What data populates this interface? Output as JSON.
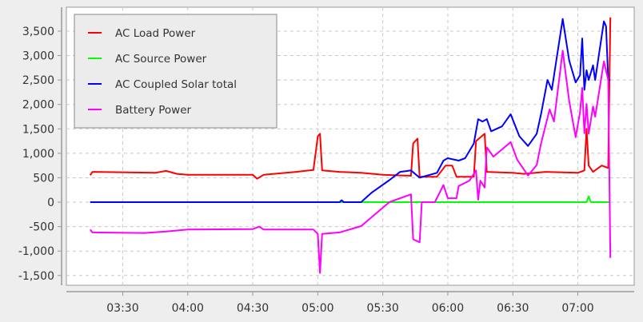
{
  "chart_data": {
    "type": "line",
    "title": "",
    "xlabel": "",
    "ylabel": "",
    "xlim": [
      "03:04",
      "07:26"
    ],
    "ylim": [
      -1700,
      3990
    ],
    "grid": true,
    "legend_placement": "top-left",
    "x_ticks": [
      "03:30",
      "04:00",
      "04:30",
      "05:00",
      "05:30",
      "06:00",
      "06:30",
      "07:00"
    ],
    "y_ticks": [
      {
        "value": 3500,
        "label": "3,500"
      },
      {
        "value": 3000,
        "label": "3,000"
      },
      {
        "value": 2500,
        "label": "2,500"
      },
      {
        "value": 2000,
        "label": "2,000"
      },
      {
        "value": 1500,
        "label": "1,500"
      },
      {
        "value": 1000,
        "label": "1,000"
      },
      {
        "value": 500,
        "label": "500"
      },
      {
        "value": 0,
        "label": "0"
      },
      {
        "value": -500,
        "label": "-500"
      },
      {
        "value": -1000,
        "label": "-1,000"
      },
      {
        "value": -1500,
        "label": "-1,500"
      }
    ],
    "series": [
      {
        "name": "AC Load Power",
        "color": "#ff0000",
        "points": [
          [
            "03:15",
            550
          ],
          [
            "03:16",
            620
          ],
          [
            "03:45",
            600
          ],
          [
            "03:50",
            640
          ],
          [
            "03:55",
            580
          ],
          [
            "04:00",
            560
          ],
          [
            "04:30",
            560
          ],
          [
            "04:32",
            480
          ],
          [
            "04:35",
            560
          ],
          [
            "04:50",
            620
          ],
          [
            "04:58",
            660
          ],
          [
            "05:00",
            1350
          ],
          [
            "05:01",
            1400
          ],
          [
            "05:02",
            650
          ],
          [
            "05:10",
            620
          ],
          [
            "05:20",
            600
          ],
          [
            "05:30",
            560
          ],
          [
            "05:43",
            540
          ],
          [
            "05:44",
            1200
          ],
          [
            "05:46",
            1300
          ],
          [
            "05:47",
            520
          ],
          [
            "05:55",
            520
          ],
          [
            "05:59",
            750
          ],
          [
            "06:02",
            750
          ],
          [
            "06:04",
            520
          ],
          [
            "06:12",
            520
          ],
          [
            "06:13",
            1250
          ],
          [
            "06:17",
            1400
          ],
          [
            "06:18",
            620
          ],
          [
            "06:30",
            600
          ],
          [
            "06:35",
            580
          ],
          [
            "06:45",
            620
          ],
          [
            "07:00",
            600
          ],
          [
            "07:03",
            650
          ],
          [
            "07:04",
            1500
          ],
          [
            "07:05",
            750
          ],
          [
            "07:07",
            620
          ],
          [
            "07:11",
            750
          ],
          [
            "07:14",
            700
          ],
          [
            "07:15",
            3780
          ]
        ]
      },
      {
        "name": "AC Source Power",
        "color": "#00ff00",
        "points": [
          [
            "03:15",
            0
          ],
          [
            "07:04",
            0
          ],
          [
            "07:05",
            120
          ],
          [
            "07:06",
            0
          ],
          [
            "07:15",
            0
          ]
        ]
      },
      {
        "name": "AC Coupled Solar total",
        "color": "#0000ff",
        "points": [
          [
            "03:15",
            0
          ],
          [
            "05:10",
            0
          ],
          [
            "05:11",
            40
          ],
          [
            "05:12",
            0
          ],
          [
            "05:20",
            0
          ],
          [
            "05:25",
            200
          ],
          [
            "05:33",
            450
          ],
          [
            "05:38",
            620
          ],
          [
            "05:43",
            650
          ],
          [
            "05:47",
            500
          ],
          [
            "05:55",
            600
          ],
          [
            "05:58",
            850
          ],
          [
            "06:00",
            900
          ],
          [
            "06:05",
            850
          ],
          [
            "06:08",
            900
          ],
          [
            "06:12",
            1200
          ],
          [
            "06:14",
            1700
          ],
          [
            "06:16",
            1650
          ],
          [
            "06:18",
            1700
          ],
          [
            "06:20",
            1450
          ],
          [
            "06:25",
            1550
          ],
          [
            "06:29",
            1800
          ],
          [
            "06:33",
            1350
          ],
          [
            "06:37",
            1150
          ],
          [
            "06:41",
            1400
          ],
          [
            "06:43",
            1800
          ],
          [
            "06:46",
            2500
          ],
          [
            "06:48",
            2300
          ],
          [
            "06:53",
            3750
          ],
          [
            "06:56",
            2900
          ],
          [
            "06:59",
            2450
          ],
          [
            "07:01",
            2600
          ],
          [
            "07:02",
            3350
          ],
          [
            "07:03",
            2300
          ],
          [
            "07:04",
            2700
          ],
          [
            "07:05",
            2500
          ],
          [
            "07:07",
            2800
          ],
          [
            "07:08",
            2500
          ],
          [
            "07:12",
            3700
          ],
          [
            "07:13",
            3600
          ],
          [
            "07:14",
            2500
          ],
          [
            "07:15",
            2500
          ]
        ]
      },
      {
        "name": "Battery Power",
        "color": "#ff00ff",
        "points": [
          [
            "03:15",
            -560
          ],
          [
            "03:16",
            -620
          ],
          [
            "03:40",
            -630
          ],
          [
            "03:50",
            -600
          ],
          [
            "04:00",
            -560
          ],
          [
            "04:30",
            -550
          ],
          [
            "04:33",
            -500
          ],
          [
            "04:35",
            -560
          ],
          [
            "04:58",
            -560
          ],
          [
            "05:00",
            -650
          ],
          [
            "05:01",
            -1450
          ],
          [
            "05:02",
            -650
          ],
          [
            "05:10",
            -620
          ],
          [
            "05:20",
            -490
          ],
          [
            "05:33",
            0
          ],
          [
            "05:43",
            160
          ],
          [
            "05:44",
            -760
          ],
          [
            "05:47",
            -820
          ],
          [
            "05:48",
            0
          ],
          [
            "05:54",
            0
          ],
          [
            "05:58",
            350
          ],
          [
            "06:00",
            80
          ],
          [
            "06:04",
            80
          ],
          [
            "06:05",
            330
          ],
          [
            "06:10",
            440
          ],
          [
            "06:13",
            650
          ],
          [
            "06:14",
            50
          ],
          [
            "06:15",
            440
          ],
          [
            "06:17",
            300
          ],
          [
            "06:18",
            1120
          ],
          [
            "06:21",
            930
          ],
          [
            "06:29",
            1230
          ],
          [
            "06:32",
            870
          ],
          [
            "06:37",
            545
          ],
          [
            "06:41",
            760
          ],
          [
            "06:43",
            1200
          ],
          [
            "06:47",
            1900
          ],
          [
            "06:49",
            1650
          ],
          [
            "06:53",
            3100
          ],
          [
            "06:56",
            2070
          ],
          [
            "06:59",
            1330
          ],
          [
            "07:01",
            1850
          ],
          [
            "07:02",
            2340
          ],
          [
            "07:03",
            1410
          ],
          [
            "07:04",
            2010
          ],
          [
            "07:05",
            1400
          ],
          [
            "07:07",
            1960
          ],
          [
            "07:08",
            1750
          ],
          [
            "07:12",
            2880
          ],
          [
            "07:14",
            2500
          ],
          [
            "07:15",
            -1140
          ]
        ]
      }
    ]
  }
}
